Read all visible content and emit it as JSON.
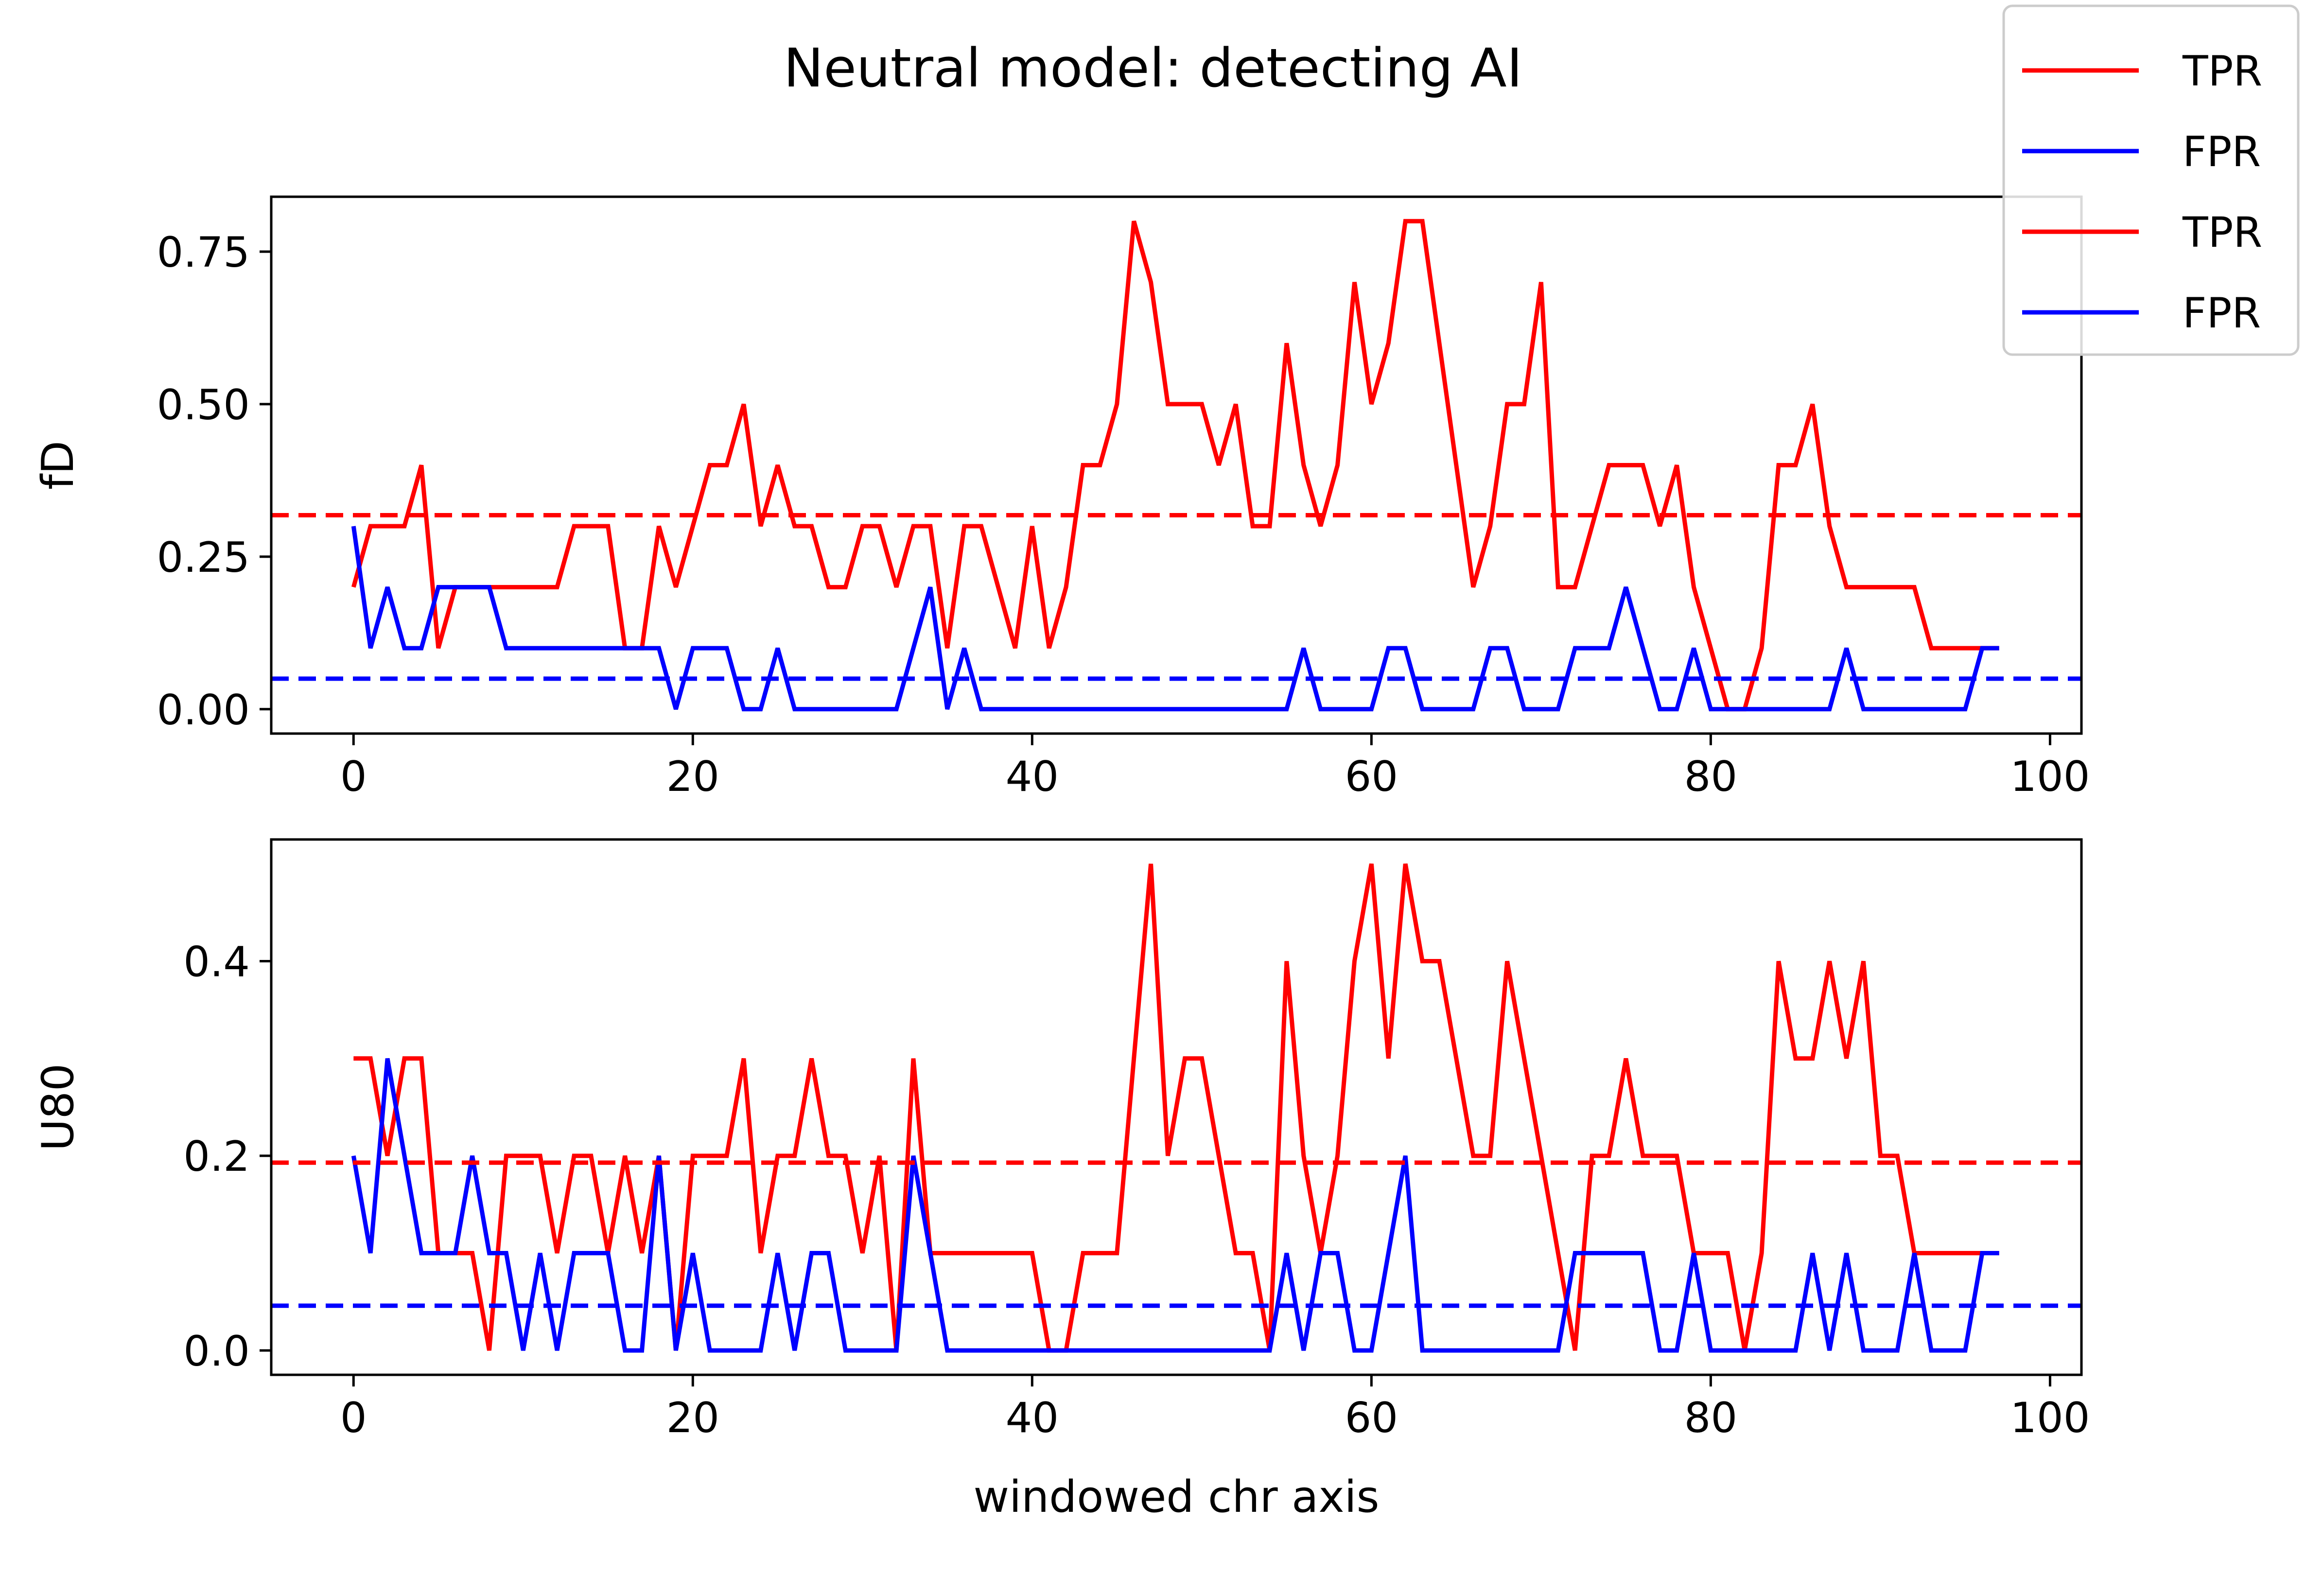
{
  "figure": {
    "title": "Neutral model: detecting AI"
  },
  "legend": {
    "placement": "upper-right (figure)",
    "entries": [
      {
        "label": "TPR",
        "color": "#ff0000"
      },
      {
        "label": "FPR",
        "color": "#0000ff"
      },
      {
        "label": "TPR",
        "color": "#ff0000"
      },
      {
        "label": "FPR",
        "color": "#0000ff"
      }
    ]
  },
  "chart_data": [
    {
      "type": "line",
      "title": "",
      "xlabel": "",
      "ylabel": "fD",
      "xlim": [
        -4.85,
        101.85
      ],
      "ylim": [
        -0.04,
        0.84
      ],
      "xticks": [
        0,
        20,
        40,
        60,
        80,
        100
      ],
      "xticklabels": [
        "0",
        "20",
        "40",
        "60",
        "80",
        "100"
      ],
      "yticks": [
        0.0,
        0.25,
        0.5,
        0.75
      ],
      "yticklabels": [
        "0.00",
        "0.25",
        "0.50",
        "0.75"
      ],
      "grid": false,
      "series": [
        {
          "name": "TPR",
          "color": "#ff0000",
          "style": "solid",
          "x_start": 0,
          "values": [
            0.2,
            0.3,
            0.3,
            0.3,
            0.4,
            0.1,
            0.2,
            0.2,
            0.2,
            0.2,
            0.2,
            0.2,
            0.2,
            0.3,
            0.3,
            0.3,
            0.1,
            0.1,
            0.3,
            0.2,
            0.3,
            0.4,
            0.4,
            0.5,
            0.3,
            0.4,
            0.3,
            0.3,
            0.2,
            0.2,
            0.3,
            0.3,
            0.2,
            0.3,
            0.3,
            0.1,
            0.3,
            0.3,
            0.2,
            0.1,
            0.3,
            0.1,
            0.2,
            0.4,
            0.4,
            0.5,
            0.8,
            0.7,
            0.5,
            0.5,
            0.5,
            0.4,
            0.5,
            0.3,
            0.3,
            0.6,
            0.4,
            0.3,
            0.4,
            0.7,
            0.5,
            0.6,
            0.8,
            0.8,
            0.6,
            0.4,
            0.2,
            0.3,
            0.5,
            0.5,
            0.7,
            0.2,
            0.2,
            0.3,
            0.4,
            0.4,
            0.4,
            0.3,
            0.4,
            0.2,
            0.1,
            0.0,
            0.0,
            0.1,
            0.4,
            0.4,
            0.5,
            0.3,
            0.2,
            0.2,
            0.2,
            0.2,
            0.2,
            0.1,
            0.1,
            0.1,
            0.1,
            0.1
          ]
        },
        {
          "name": "FPR",
          "color": "#0000ff",
          "style": "solid",
          "x_start": 0,
          "values": [
            0.3,
            0.1,
            0.2,
            0.1,
            0.1,
            0.2,
            0.2,
            0.2,
            0.2,
            0.1,
            0.1,
            0.1,
            0.1,
            0.1,
            0.1,
            0.1,
            0.1,
            0.1,
            0.1,
            0.0,
            0.1,
            0.1,
            0.1,
            0.0,
            0.0,
            0.1,
            0.0,
            0.0,
            0.0,
            0.0,
            0.0,
            0.0,
            0.0,
            0.1,
            0.2,
            0.0,
            0.1,
            0.0,
            0.0,
            0.0,
            0.0,
            0.0,
            0.0,
            0.0,
            0.0,
            0.0,
            0.0,
            0.0,
            0.0,
            0.0,
            0.0,
            0.0,
            0.0,
            0.0,
            0.0,
            0.0,
            0.1,
            0.0,
            0.0,
            0.0,
            0.0,
            0.1,
            0.1,
            0.0,
            0.0,
            0.0,
            0.0,
            0.1,
            0.1,
            0.0,
            0.0,
            0.0,
            0.1,
            0.1,
            0.1,
            0.2,
            0.1,
            0.0,
            0.0,
            0.1,
            0.0,
            0.0,
            0.0,
            0.0,
            0.0,
            0.0,
            0.0,
            0.0,
            0.1,
            0.0,
            0.0,
            0.0,
            0.0,
            0.0,
            0.0,
            0.0,
            0.1,
            0.1
          ]
        },
        {
          "name": "TPR",
          "color": "#ff0000",
          "style": "dashed",
          "hline": 0.318
        },
        {
          "name": "FPR",
          "color": "#0000ff",
          "style": "dashed",
          "hline": 0.05
        }
      ]
    },
    {
      "type": "line",
      "title": "",
      "xlabel": "windowed chr axis",
      "ylabel": "U80",
      "xlim": [
        -4.85,
        101.85
      ],
      "ylim": [
        -0.025,
        0.525
      ],
      "xticks": [
        0,
        20,
        40,
        60,
        80,
        100
      ],
      "xticklabels": [
        "0",
        "20",
        "40",
        "60",
        "80",
        "100"
      ],
      "yticks": [
        0.0,
        0.2,
        0.4
      ],
      "yticklabels": [
        "0.0",
        "0.2",
        "0.4"
      ],
      "grid": false,
      "series": [
        {
          "name": "TPR",
          "color": "#ff0000",
          "style": "solid",
          "x_start": 0,
          "values": [
            0.3,
            0.3,
            0.2,
            0.3,
            0.3,
            0.1,
            0.1,
            0.1,
            0.0,
            0.2,
            0.2,
            0.2,
            0.1,
            0.2,
            0.2,
            0.1,
            0.2,
            0.1,
            0.2,
            0.0,
            0.2,
            0.2,
            0.2,
            0.3,
            0.1,
            0.2,
            0.2,
            0.3,
            0.2,
            0.2,
            0.1,
            0.2,
            0.0,
            0.3,
            0.1,
            0.1,
            0.1,
            0.1,
            0.1,
            0.1,
            0.1,
            0.0,
            0.0,
            0.1,
            0.1,
            0.1,
            0.3,
            0.5,
            0.2,
            0.3,
            0.3,
            0.2,
            0.1,
            0.1,
            0.0,
            0.4,
            0.2,
            0.1,
            0.2,
            0.4,
            0.5,
            0.3,
            0.5,
            0.4,
            0.4,
            0.3,
            0.2,
            0.2,
            0.4,
            0.3,
            0.2,
            0.1,
            0.0,
            0.2,
            0.2,
            0.3,
            0.2,
            0.2,
            0.2,
            0.1,
            0.1,
            0.1,
            0.0,
            0.1,
            0.4,
            0.3,
            0.3,
            0.4,
            0.3,
            0.4,
            0.2,
            0.2,
            0.1,
            0.1,
            0.1,
            0.1,
            0.1,
            0.1
          ]
        },
        {
          "name": "FPR",
          "color": "#0000ff",
          "style": "solid",
          "x_start": 0,
          "values": [
            0.2,
            0.1,
            0.3,
            0.2,
            0.1,
            0.1,
            0.1,
            0.2,
            0.1,
            0.1,
            0.0,
            0.1,
            0.0,
            0.1,
            0.1,
            0.1,
            0.0,
            0.0,
            0.2,
            0.0,
            0.1,
            0.0,
            0.0,
            0.0,
            0.0,
            0.1,
            0.0,
            0.1,
            0.1,
            0.0,
            0.0,
            0.0,
            0.0,
            0.2,
            0.1,
            0.0,
            0.0,
            0.0,
            0.0,
            0.0,
            0.0,
            0.0,
            0.0,
            0.0,
            0.0,
            0.0,
            0.0,
            0.0,
            0.0,
            0.0,
            0.0,
            0.0,
            0.0,
            0.0,
            0.0,
            0.1,
            0.0,
            0.1,
            0.1,
            0.0,
            0.0,
            0.1,
            0.2,
            0.0,
            0.0,
            0.0,
            0.0,
            0.0,
            0.0,
            0.0,
            0.0,
            0.0,
            0.1,
            0.1,
            0.1,
            0.1,
            0.1,
            0.0,
            0.0,
            0.1,
            0.0,
            0.0,
            0.0,
            0.0,
            0.0,
            0.0,
            0.1,
            0.0,
            0.1,
            0.0,
            0.0,
            0.0,
            0.1,
            0.0,
            0.0,
            0.0,
            0.1,
            0.1
          ]
        },
        {
          "name": "TPR",
          "color": "#ff0000",
          "style": "dashed",
          "hline": 0.193
        },
        {
          "name": "FPR",
          "color": "#0000ff",
          "style": "dashed",
          "hline": 0.046
        }
      ]
    }
  ]
}
